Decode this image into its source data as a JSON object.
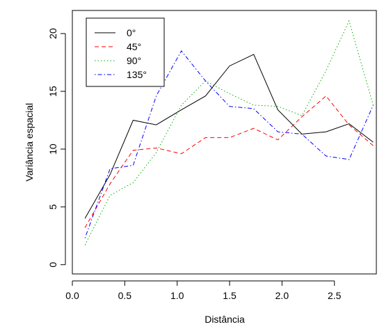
{
  "chart_data": {
    "type": "line",
    "xlabel": "Distância",
    "ylabel": "Variância espacial",
    "xlim": [
      0,
      2.9
    ],
    "ylim": [
      -0.8,
      22
    ],
    "x_ticks": [
      "0.0",
      "0.5",
      "1.0",
      "1.5",
      "2.0",
      "2.5"
    ],
    "y_ticks": [
      "0",
      "5",
      "10",
      "15",
      "20"
    ],
    "x_tick_values": [
      0,
      0.5,
      1.0,
      1.5,
      2.0,
      2.5
    ],
    "y_tick_values": [
      0,
      5,
      10,
      15,
      20
    ],
    "grid": false,
    "legend_position": "top-left",
    "x": [
      0.12,
      0.36,
      0.58,
      0.8,
      1.04,
      1.27,
      1.5,
      1.73,
      1.96,
      2.19,
      2.42,
      2.64,
      2.87
    ],
    "series": [
      {
        "name": "0°",
        "color": "#000000",
        "dash": "solid",
        "values": [
          4.0,
          7.8,
          12.5,
          12.1,
          13.4,
          14.6,
          17.2,
          18.2,
          13.4,
          11.3,
          11.5,
          12.2,
          10.6
        ]
      },
      {
        "name": "45°",
        "color": "#ff0000",
        "dash": "dashed",
        "values": [
          3.2,
          7.0,
          9.9,
          10.1,
          9.6,
          11.0,
          11.0,
          11.8,
          10.8,
          12.8,
          14.6,
          12.1,
          10.3
        ]
      },
      {
        "name": "90°",
        "color": "#00b000",
        "dash": "dotted",
        "values": [
          1.7,
          6.0,
          7.1,
          9.7,
          13.8,
          15.9,
          14.8,
          13.8,
          13.7,
          12.9,
          16.8,
          21.1,
          13.8
        ]
      },
      {
        "name": "135°",
        "color": "#0000ff",
        "dash": "dashdot",
        "values": [
          2.3,
          8.3,
          8.6,
          14.6,
          18.5,
          15.9,
          13.7,
          13.5,
          11.5,
          11.3,
          9.4,
          9.1,
          13.8
        ]
      }
    ]
  }
}
